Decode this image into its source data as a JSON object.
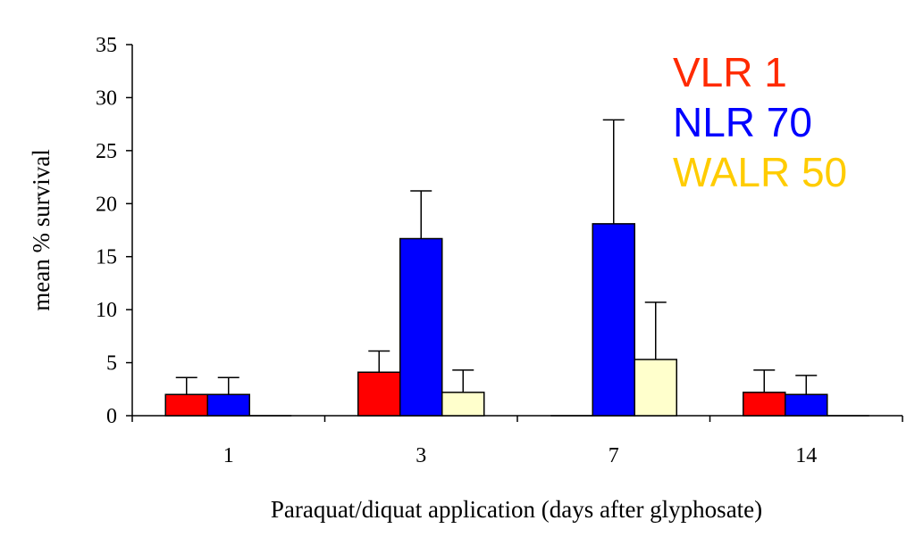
{
  "chart_data": {
    "type": "bar",
    "title": "",
    "xlabel": "Paraquat/diquat application (days after glyphosate)",
    "ylabel": "mean % survival",
    "categories": [
      "1",
      "3",
      "7",
      "14"
    ],
    "ylim": [
      0,
      35
    ],
    "yticks": [
      "0",
      "5",
      "10",
      "15",
      "20",
      "25",
      "30",
      "35"
    ],
    "grid": false,
    "legend_position": "top-right",
    "error_bars": "upper",
    "series": [
      {
        "name": "VLR 1",
        "color": "#ff0000",
        "label_color": "#ff2a00",
        "values": [
          2.0,
          4.1,
          0,
          2.2
        ],
        "errors": [
          1.6,
          2.0,
          0,
          2.1
        ]
      },
      {
        "name": "NLR 70",
        "color": "#0000ff",
        "label_color": "#0000ff",
        "values": [
          2.0,
          16.7,
          18.1,
          2.0
        ],
        "errors": [
          1.6,
          4.5,
          9.8,
          1.8
        ]
      },
      {
        "name": "WALR 50",
        "color": "#ffffcc",
        "label_color": "#ffcc00",
        "values": [
          0,
          2.2,
          5.3,
          0
        ],
        "errors": [
          0,
          2.1,
          5.4,
          0
        ]
      }
    ]
  }
}
